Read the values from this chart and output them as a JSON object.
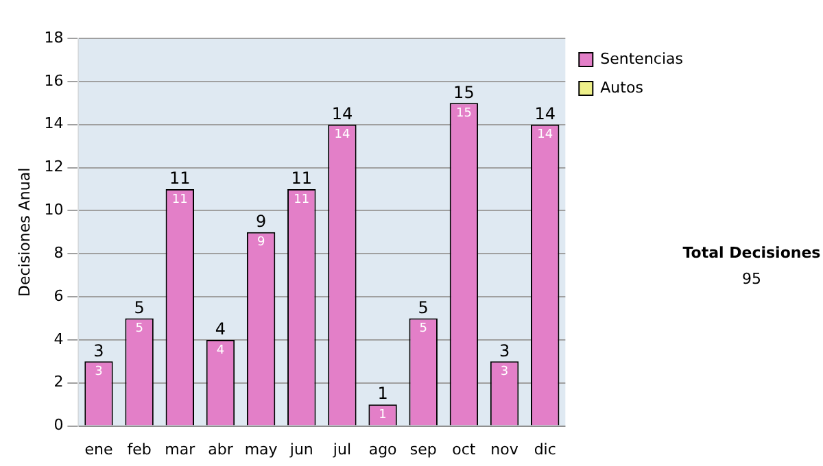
{
  "chart_data": {
    "type": "bar",
    "stacked": true,
    "ylabel": "Decisiones Anual",
    "categories": [
      "ene",
      "feb",
      "mar",
      "abr",
      "may",
      "jun",
      "jul",
      "ago",
      "sep",
      "oct",
      "nov",
      "dic"
    ],
    "series": [
      {
        "name": "Sentencias",
        "color": "#e37fc8",
        "values": [
          3,
          5,
          11,
          4,
          9,
          11,
          14,
          1,
          5,
          15,
          3,
          14
        ],
        "value_labels": [
          "3",
          "5",
          "11",
          "4",
          "9",
          "11",
          "14",
          "1",
          "5",
          "15",
          "3",
          "14"
        ]
      },
      {
        "name": "Autos",
        "color": "#eef08a",
        "values": [
          0,
          0,
          0,
          0,
          0,
          0,
          0,
          0,
          0,
          0,
          0,
          0
        ]
      }
    ],
    "ylim": [
      0,
      18
    ],
    "yticks": [
      0,
      2,
      4,
      6,
      8,
      10,
      12,
      14,
      16,
      18
    ],
    "grid": "y",
    "legend": "right",
    "totals": [
      "3",
      "5",
      "11",
      "4",
      "9",
      "11",
      "14",
      "1",
      "5",
      "15",
      "3",
      "14"
    ],
    "annotations": [
      "Total Decisiones",
      "95"
    ]
  }
}
